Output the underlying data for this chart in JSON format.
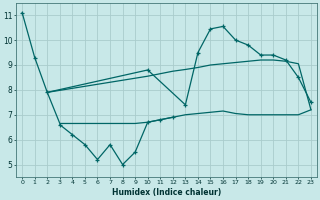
{
  "xlabel": "Humidex (Indice chaleur)",
  "background_color": "#c8e8e8",
  "grid_color": "#aacccc",
  "line_color": "#006666",
  "xlim": [
    -0.5,
    23.5
  ],
  "ylim": [
    4.5,
    11.5
  ],
  "xtick_labels": [
    "0",
    "1",
    "2",
    "3",
    "4",
    "5",
    "6",
    "7",
    "8",
    "9",
    "10",
    "11",
    "12",
    "13",
    "14",
    "15",
    "16",
    "17",
    "18",
    "19",
    "20",
    "21",
    "22",
    "23"
  ],
  "ytick_values": [
    5,
    6,
    7,
    8,
    9,
    10,
    11
  ],
  "ytick_labels": [
    "5",
    "6",
    "7",
    "8",
    "9",
    "10",
    "11"
  ],
  "series1_x": [
    0,
    1,
    2,
    10,
    13,
    14,
    15,
    16,
    17,
    18,
    19,
    20,
    21,
    22,
    23
  ],
  "series1_y": [
    11.1,
    9.3,
    7.9,
    8.8,
    7.4,
    9.5,
    10.45,
    10.55,
    10.0,
    9.8,
    9.4,
    9.4,
    9.2,
    8.5,
    7.5
  ],
  "series2_x": [
    3,
    4,
    5,
    6,
    7,
    8,
    9,
    10,
    11,
    12
  ],
  "series2_y": [
    6.6,
    6.2,
    5.8,
    5.2,
    5.8,
    5.0,
    5.5,
    6.7,
    6.8,
    6.9
  ],
  "trend_low_x": [
    2,
    3,
    9,
    10,
    11,
    12,
    13,
    14,
    15,
    16,
    17,
    18,
    19,
    20,
    21,
    22,
    23
  ],
  "trend_low_y": [
    7.9,
    6.65,
    6.65,
    6.7,
    6.8,
    6.9,
    7.0,
    7.05,
    7.1,
    7.15,
    7.05,
    7.0,
    7.0,
    7.0,
    7.0,
    7.0,
    7.2
  ],
  "trend_high_x": [
    2,
    10,
    11,
    12,
    13,
    14,
    15,
    16,
    17,
    18,
    19,
    20,
    21,
    22,
    23
  ],
  "trend_high_y": [
    7.9,
    8.55,
    8.65,
    8.75,
    8.82,
    8.9,
    9.0,
    9.05,
    9.1,
    9.15,
    9.2,
    9.2,
    9.15,
    9.05,
    7.2
  ]
}
